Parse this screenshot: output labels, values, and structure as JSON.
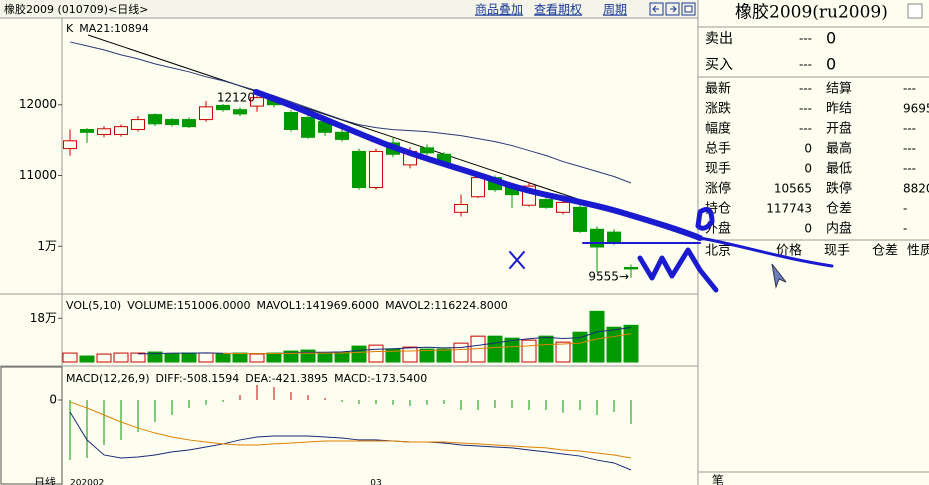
{
  "header": {
    "title": "橡胶2009 (010709)<日线>",
    "links": [
      "商品叠加",
      "查看期权",
      "周期"
    ]
  },
  "quote": {
    "title": "橡胶2009(ru2009)",
    "bid_ask": [
      [
        "卖出",
        "---",
        "0"
      ],
      [
        "买入",
        "---",
        "0"
      ]
    ],
    "rows": [
      [
        "最新",
        "---",
        "结算",
        "---"
      ],
      [
        "涨跌",
        "---",
        "昨结",
        "9695"
      ],
      [
        "幅度",
        "---",
        "开盘",
        "---"
      ],
      [
        "总手",
        "0",
        "最高",
        "---"
      ],
      [
        "现手",
        "0",
        "最低",
        "---"
      ],
      [
        "涨停",
        "10565",
        "跌停",
        "8820"
      ],
      [
        "持仓",
        "117743",
        "仓差",
        "-"
      ],
      [
        "外盘",
        "0",
        "内盘",
        "-"
      ]
    ],
    "tick_header": [
      "北京",
      "价格",
      "现手",
      "仓差",
      "性质"
    ],
    "tab": "笔"
  },
  "chart_data": [
    {
      "type": "candlestick",
      "legend": [
        {
          "text": "K",
          "color": "#000000"
        },
        {
          "text": "MA21:10894",
          "color": "#000000"
        }
      ],
      "categories": [
        "202002",
        null,
        null,
        null,
        null,
        null,
        null,
        null,
        null,
        null,
        null,
        null,
        null,
        null,
        null,
        null,
        null,
        null,
        "03",
        null,
        null,
        null,
        null,
        null,
        null,
        null,
        null,
        null,
        null,
        null,
        null,
        null,
        null,
        null
      ],
      "open": [
        11380,
        11650,
        11580,
        11580,
        11650,
        11860,
        11790,
        11790,
        11790,
        11990,
        11930,
        11980,
        12090,
        11890,
        11820,
        11760,
        11610,
        11340,
        10830,
        11460,
        11150,
        11390,
        11300,
        10480,
        10700,
        10970,
        10830,
        10580,
        10660,
        10480,
        10550,
        10240,
        10200,
        9700
      ],
      "high": [
        11650,
        11670,
        11700,
        11720,
        11840,
        11880,
        11810,
        11820,
        12050,
        12010,
        11960,
        12120,
        12110,
        11920,
        11850,
        11790,
        11650,
        11380,
        11380,
        11530,
        11400,
        11440,
        11330,
        10730,
        11010,
        11000,
        10860,
        10900,
        10690,
        10650,
        10580,
        10280,
        10240,
        9740
      ],
      "low": [
        11280,
        11460,
        11540,
        11550,
        11620,
        11700,
        11690,
        11670,
        11760,
        11900,
        11840,
        11900,
        11960,
        11620,
        11520,
        11560,
        11480,
        10800,
        10800,
        11260,
        11100,
        11290,
        11140,
        10420,
        10680,
        10770,
        10540,
        10560,
        10530,
        10450,
        10190,
        9640,
        10020,
        9555
      ],
      "close": [
        11490,
        11610,
        11660,
        11690,
        11790,
        11730,
        11720,
        11690,
        11970,
        11930,
        11870,
        12100,
        12000,
        11650,
        11540,
        11610,
        11510,
        10830,
        11340,
        11300,
        11340,
        11320,
        11170,
        10590,
        10970,
        10800,
        10730,
        10850,
        10550,
        10620,
        10210,
        9990,
        10060,
        9680
      ],
      "up_color": "#cc0000",
      "down_color": "#009900",
      "series": [
        {
          "color": "#2a3a7a",
          "values": [
            12887,
            12831,
            12775,
            12704,
            12648,
            12577,
            12521,
            12465,
            12394,
            12338,
            12268,
            12197,
            12127,
            12042,
            11958,
            11873,
            11789,
            11718,
            11676,
            11648,
            11634,
            11620,
            11592,
            11563,
            11521,
            11479,
            11423,
            11352,
            11282,
            11197,
            11127,
            11056,
            10986,
            10894
          ]
        }
      ],
      "annotations": [
        "12120",
        "9555→"
      ],
      "ylim": [
        9340,
        13225
      ],
      "yticks": [
        12000,
        11000,
        {
          "value": 10000,
          "label": "1万"
        }
      ],
      "grid": false
    },
    {
      "type": "bar",
      "legend": [
        {
          "text": "VOL(5,10)",
          "color": "#000000"
        },
        {
          "text": "VOLUME:151006.0000",
          "color": "#000000"
        },
        {
          "text": "MAVOL1:141969.6000",
          "color": "#1a2a7a"
        },
        {
          "text": "MAVOL2:116224.8000",
          "color": "#e08000"
        }
      ],
      "values": [
        36800,
        24500,
        32700,
        36800,
        36800,
        40900,
        32700,
        36800,
        36800,
        32700,
        36800,
        32700,
        36800,
        45000,
        49100,
        36800,
        40900,
        65500,
        69500,
        53200,
        61400,
        53200,
        53200,
        77700,
        106400,
        106400,
        98200,
        90000,
        106400,
        81800,
        122700,
        208600,
        143200,
        151006
      ],
      "series": [
        {
          "color": "#1a2a7a",
          "values": [
            null,
            null,
            null,
            null,
            33500,
            34300,
            36400,
            36800,
            37600,
            36000,
            35100,
            35100,
            35100,
            36800,
            40100,
            40000,
            41700,
            47500,
            52400,
            54800,
            58300,
            60600,
            58200,
            59800,
            68400,
            78400,
            88400,
            95700,
            101500,
            96600,
            99800,
            123900,
            132500,
            141969.6
          ]
        },
        {
          "color": "#e08000",
          "values": [
            null,
            null,
            null,
            null,
            null,
            null,
            null,
            null,
            null,
            35000,
            35000,
            34600,
            35000,
            35300,
            36700,
            36500,
            37000,
            39900,
            43100,
            44200,
            45200,
            47200,
            48900,
            51400,
            55300,
            59900,
            63100,
            66200,
            71700,
            74000,
            77900,
            95100,
            104800,
            116224.8
          ]
        }
      ],
      "ylim": [
        0,
        276000
      ],
      "yticks": [
        {
          "value": 180000,
          "label": "18万"
        }
      ]
    },
    {
      "type": "macd",
      "legend": [
        {
          "text": "MACD(12,26,9)",
          "color": "#000000"
        },
        {
          "text": "DIFF:-508.1594",
          "color": "#1a2a7a"
        },
        {
          "text": "DEA:-421.3895",
          "color": "#e08000"
        },
        {
          "text": "MACD:-173.5400",
          "color": "#000000"
        }
      ],
      "values": [
        -436,
        -421,
        -327,
        -290,
        -232,
        -160,
        -109,
        -58,
        -36,
        -15,
        36,
        109,
        94,
        58,
        36,
        15,
        -15,
        -29,
        -29,
        -36,
        -44,
        -36,
        -29,
        -73,
        -73,
        -58,
        -58,
        -73,
        -73,
        -94,
        -73,
        -109,
        -87,
        -173.54
      ],
      "series": [
        {
          "color": "#1a2a7a",
          "values": [
            -87,
            -290,
            -399,
            -421,
            -414,
            -399,
            -377,
            -363,
            -341,
            -319,
            -290,
            -269,
            -261,
            -261,
            -261,
            -269,
            -276,
            -290,
            -290,
            -298,
            -305,
            -305,
            -312,
            -327,
            -334,
            -341,
            -348,
            -363,
            -377,
            -392,
            -407,
            -436,
            -457,
            -508.1594
          ]
        },
        {
          "color": "#e08000",
          "values": [
            -15,
            -58,
            -109,
            -160,
            -203,
            -240,
            -269,
            -290,
            -305,
            -319,
            -327,
            -327,
            -319,
            -312,
            -305,
            -298,
            -298,
            -298,
            -298,
            -298,
            -305,
            -305,
            -305,
            -312,
            -319,
            -327,
            -334,
            -341,
            -348,
            -363,
            -370,
            -385,
            -399,
            -421.3895
          ]
        }
      ],
      "up_color": "#cc0000",
      "down_color": "#009900",
      "xlabel": "日线",
      "ylim": [
        -617,
        232
      ],
      "yticks": [
        0
      ]
    }
  ]
}
